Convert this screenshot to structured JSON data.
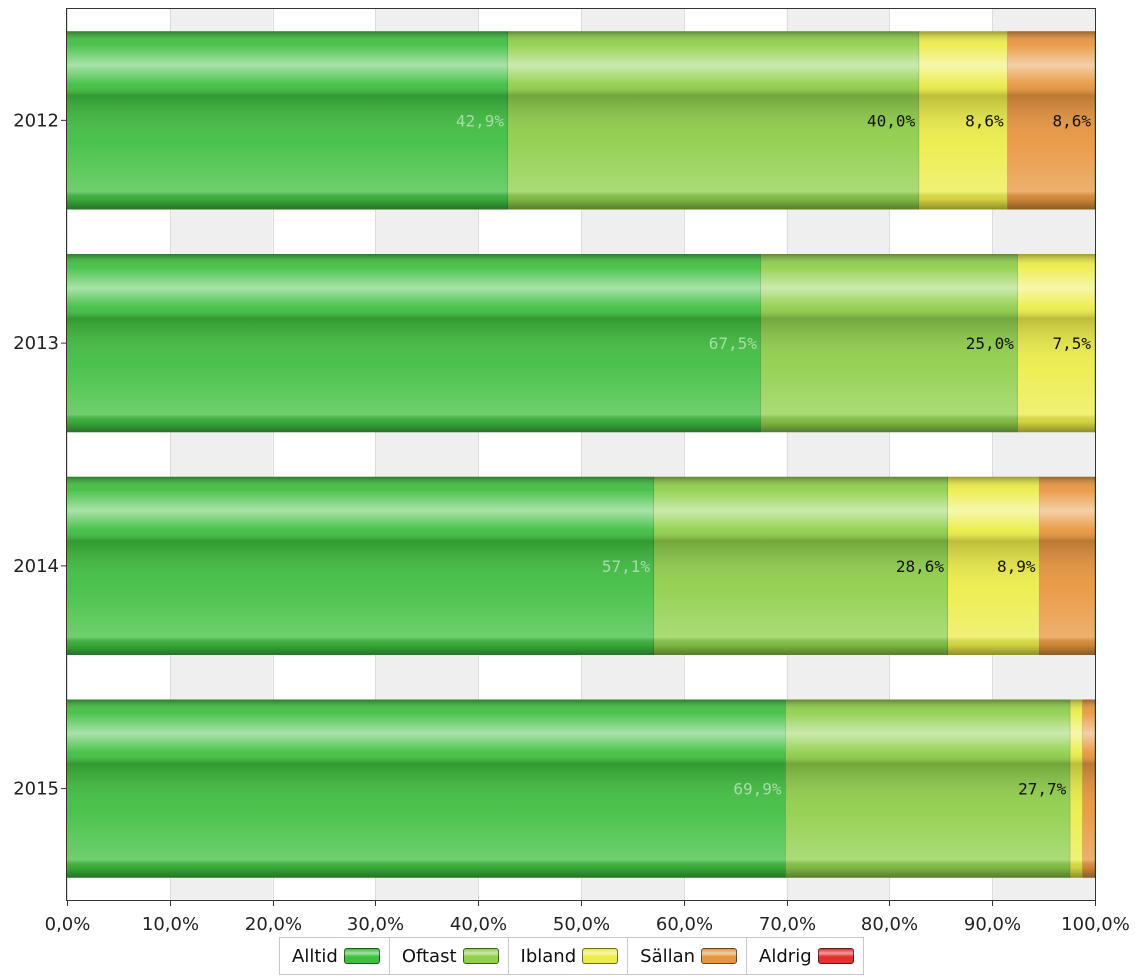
{
  "chart_data": {
    "type": "bar",
    "orientation": "horizontal",
    "stacked": true,
    "categories": [
      "2012",
      "2013",
      "2014",
      "2015"
    ],
    "series": [
      {
        "name": "Alltid",
        "color": "#3fbf3f",
        "values": [
          42.9,
          67.5,
          57.1,
          69.9
        ],
        "labels": [
          "42,9%",
          "67,5%",
          "57,1%",
          "69,9%"
        ]
      },
      {
        "name": "Oftast",
        "color": "#8fcf4a",
        "values": [
          40.0,
          25.0,
          28.6,
          27.7
        ],
        "labels": [
          "40,0%",
          "25,0%",
          "28,6%",
          "27,7%"
        ]
      },
      {
        "name": "Ibland",
        "color": "#ecec48",
        "values": [
          8.6,
          7.5,
          8.9,
          1.2
        ],
        "labels": [
          "8,6%",
          "7,5%",
          "8,9%",
          ""
        ]
      },
      {
        "name": "Sällan",
        "color": "#e8963e",
        "values": [
          8.6,
          0,
          5.4,
          1.2
        ],
        "labels": [
          "8,6%",
          "",
          "",
          ""
        ]
      },
      {
        "name": "Aldrig",
        "color": "#e03030",
        "values": [
          0,
          0,
          0,
          0
        ],
        "labels": [
          "",
          "",
          "",
          ""
        ]
      }
    ],
    "xlim": [
      0,
      100
    ],
    "xticks": [
      "0,0%",
      "10,0%",
      "20,0%",
      "30,0%",
      "40,0%",
      "50,0%",
      "60,0%",
      "70,0%",
      "80,0%",
      "90,0%",
      "100,0%"
    ],
    "grid": true,
    "legend_position": "bottom"
  }
}
